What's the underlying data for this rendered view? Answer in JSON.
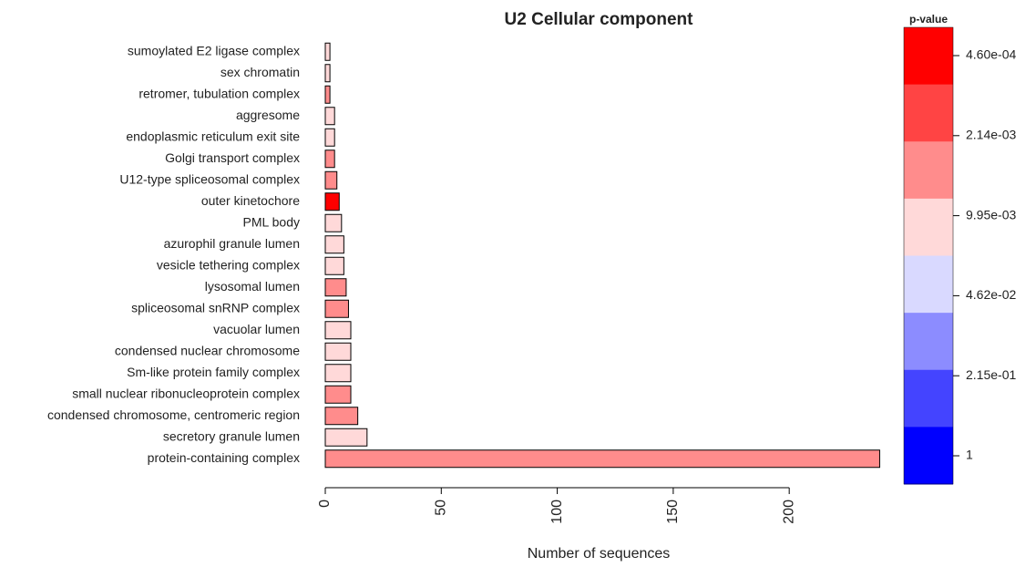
{
  "chart_data": {
    "type": "barh",
    "title": "U2 Cellular component",
    "xlabel": "Number of sequences",
    "categories": [
      "sumoylated E2 ligase complex",
      "sex chromatin",
      "retromer, tubulation complex",
      "aggresome",
      "endoplasmic reticulum exit site",
      "Golgi transport complex",
      "U12-type spliceosomal complex",
      "outer kinetochore",
      "PML body",
      "azurophil granule lumen",
      "vesicle tethering complex",
      "lysosomal lumen",
      "spliceosomal snRNP complex",
      "vacuolar lumen",
      "condensed nuclear chromosome",
      "Sm-like protein family complex",
      "small nuclear ribonucleoprotein complex",
      "condensed chromosome, centromeric region",
      "secretory granule lumen",
      "protein-containing complex"
    ],
    "values": [
      2,
      2,
      2,
      4,
      4,
      4,
      5,
      6,
      7,
      8,
      8,
      9,
      10,
      11,
      11,
      11,
      11,
      14,
      18,
      239
    ],
    "colors": [
      "#ffd9d9",
      "#ffd9d9",
      "#ff8c8c",
      "#ffd9d9",
      "#ffd9d9",
      "#ff8c8c",
      "#ff8c8c",
      "#ff0000",
      "#ffd9d9",
      "#ffd9d9",
      "#ffd9d9",
      "#ff8c8c",
      "#ff8c8c",
      "#ffd9d9",
      "#ffd9d9",
      "#ffd9d9",
      "#ff8c8c",
      "#ff8c8c",
      "#ffd9d9",
      "#ff8c8c"
    ],
    "xlim": [
      0,
      240
    ],
    "xticks": [
      0,
      50,
      100,
      150,
      200
    ],
    "legend": {
      "title": "p-value",
      "colors": [
        "#ff0000",
        "#ff4444",
        "#ff8c8c",
        "#ffd9d9",
        "#d9d9ff",
        "#8c8cff",
        "#4444ff",
        "#0000ff"
      ],
      "labels": [
        "4.60e-04",
        "2.14e-03",
        "9.95e-03",
        "4.62e-02",
        "2.15e-01",
        "1"
      ]
    }
  }
}
